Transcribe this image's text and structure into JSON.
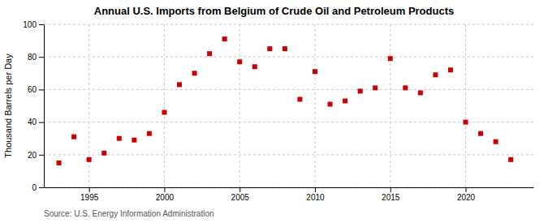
{
  "chart_data": {
    "type": "scatter",
    "title": "Annual U.S. Imports from Belgium of Crude Oil and Petroleum Products",
    "ylabel": "Thousand Barrels per Day",
    "source": "Source: U.S. Energy Information Administration",
    "x": [
      1993,
      1994,
      1995,
      1996,
      1997,
      1998,
      1999,
      2000,
      2001,
      2002,
      2003,
      2004,
      2005,
      2006,
      2007,
      2008,
      2009,
      2010,
      2011,
      2012,
      2013,
      2014,
      2015,
      2016,
      2017,
      2018,
      2019,
      2020,
      2021,
      2022,
      2023
    ],
    "values": [
      15,
      31,
      17,
      21,
      30,
      29,
      33,
      46,
      63,
      70,
      82,
      91,
      77,
      74,
      85,
      85,
      54,
      71,
      51,
      53,
      59,
      61,
      79,
      61,
      58,
      69,
      72,
      40,
      33,
      28,
      17
    ],
    "color": "#cc0000",
    "marker": "square",
    "xlim": [
      1992,
      2024.5
    ],
    "ylim": [
      0,
      100
    ],
    "xticks": [
      1995,
      2000,
      2005,
      2010,
      2015,
      2020
    ],
    "yticks": [
      0,
      20,
      40,
      60,
      80,
      100
    ],
    "grid": true
  }
}
